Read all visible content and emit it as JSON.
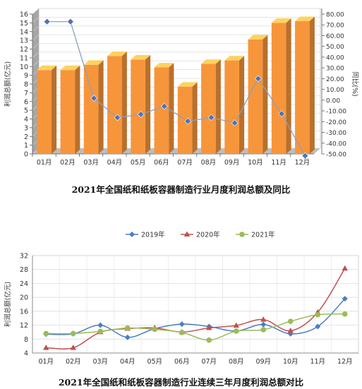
{
  "charts": [
    {
      "caption": "2021年全国纸和纸板容器制造行业月度利润总额及同比",
      "chart_data": {
        "type": "bar",
        "categories": [
          "01月",
          "02月",
          "03月",
          "04月",
          "05月",
          "06月",
          "07月",
          "08月",
          "09月",
          "10月",
          "11月",
          "12月"
        ],
        "series": [
          {
            "kind": "bar",
            "values": [
              9.6,
              9.6,
              10.2,
              11.2,
              10.8,
              9.9,
              7.7,
              10.3,
              10.7,
              13.1,
              15.0,
              15.2
            ]
          },
          {
            "kind": "line",
            "values": [
              73.0,
              73.0,
              1.8,
              -16.2,
              -13.2,
              -5.7,
              -19.6,
              -16.1,
              -21.2,
              20.0,
              -12.6,
              -51.8
            ]
          }
        ],
        "ylabel": "利润总额(亿元)",
        "y2label": "同比(%)",
        "ylim": [
          0,
          16
        ],
        "y2lim": [
          -50,
          80
        ],
        "yticks": [
          "0",
          "1",
          "2",
          "3",
          "4",
          "5",
          "6",
          "7",
          "8",
          "9",
          "10",
          "11",
          "12",
          "13",
          "14",
          "15",
          "16"
        ],
        "y2ticks": [
          "-50.00",
          "-40.00",
          "-30.00",
          "-20.00",
          "-10.00",
          "0.00",
          "10.00",
          "20.00",
          "30.00",
          "40.00",
          "50.00",
          "60.00",
          "70.00",
          "80.00"
        ],
        "bar_color": "#f7953b",
        "line_color": "#8aa0c0",
        "marker_color": "#4f74b0",
        "grid": true
      }
    },
    {
      "caption": "2021年全国纸和纸板容器制造行业连续三年月度利润总额对比",
      "chart_data": {
        "type": "line",
        "categories": [
          "01月",
          "02月",
          "03月",
          "04月",
          "05月",
          "06月",
          "07月",
          "08月",
          "09月",
          "10月",
          "11月",
          "12月"
        ],
        "series": [
          {
            "name": "2019年",
            "color": "#4a7fc1",
            "marker": "diamond",
            "values": [
              9.4,
              9.5,
              12.0,
              8.5,
              11.0,
              12.3,
              11.6,
              10.3,
              12.2,
              9.5,
              11.6,
              19.6
            ]
          },
          {
            "name": "2020年",
            "color": "#c0504d",
            "marker": "triangle",
            "values": [
              5.5,
              5.5,
              10.0,
              11.0,
              11.2,
              10.0,
              11.2,
              11.9,
              13.6,
              10.4,
              15.7,
              28.3
            ]
          },
          {
            "name": "2021年",
            "color": "#9bbb59",
            "marker": "circle",
            "values": [
              9.6,
              9.6,
              10.2,
              11.2,
              10.8,
              9.9,
              7.7,
              10.3,
              10.7,
              13.1,
              15.0,
              15.2
            ]
          }
        ],
        "ylabel": "利润总额(亿元)",
        "ylim": [
          4,
          32
        ],
        "yticks": [
          "4",
          "8",
          "12",
          "16",
          "20",
          "24",
          "28",
          "32"
        ],
        "legend": "top",
        "grid": true
      }
    }
  ]
}
